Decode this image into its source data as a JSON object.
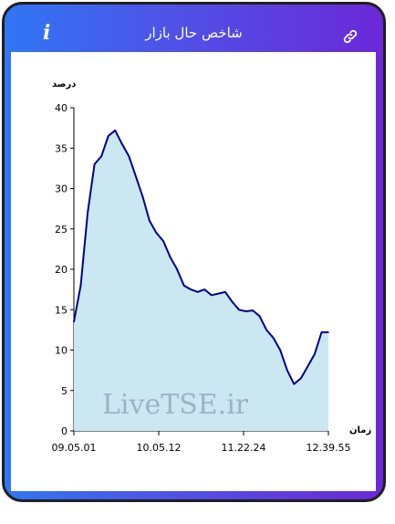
{
  "header": {
    "title": "شاخص حال بازار",
    "info_icon": "info-icon",
    "link_icon": "link-icon",
    "info_glyph": "i"
  },
  "colors": {
    "gradient_start": "#2f76f5",
    "gradient_end": "#6b28d8",
    "line": "#00008b",
    "area_fill": "#cbe7f2"
  },
  "watermark": "LiveTSE.ir",
  "chart_data": {
    "type": "area",
    "ylabel": "درصد",
    "xlabel": "زمان",
    "ylim": [
      0,
      40
    ],
    "yticks": [
      0,
      5,
      10,
      15,
      20,
      25,
      30,
      35,
      40
    ],
    "xtick_labels": [
      "09.05.01",
      "10.05.12",
      "11.22.24",
      "12.39.55"
    ],
    "x": [
      "09.05.01",
      "09.07",
      "09.10",
      "09.14",
      "09.18",
      "09.22",
      "09.26",
      "09.30",
      "09.35",
      "09.40",
      "09.45",
      "09.50",
      "09.55",
      "10.00",
      "10.05.12",
      "10.12",
      "10.20",
      "10.28",
      "10.36",
      "10.44",
      "10.52",
      "11.00",
      "11.08",
      "11.16",
      "11.22.24",
      "11.28",
      "11.34",
      "11.40",
      "11.46",
      "11.52",
      "11.58",
      "12.04",
      "12.10",
      "12.16",
      "12.22",
      "12.28",
      "12.34",
      "12.39.55"
    ],
    "series": [
      {
        "values": [
          13.5,
          18,
          27,
          33,
          34,
          36.5,
          37.2,
          35.5,
          34,
          31.5,
          29,
          26,
          24.5,
          23.5,
          21.5,
          20,
          18,
          17.5,
          17.2,
          17.5,
          16.8,
          17,
          17.2,
          16,
          15,
          14.8,
          14.9,
          14.2,
          12.5,
          11.5,
          10,
          7.5,
          5.8,
          6.5,
          8,
          9.5,
          12.2,
          12.2
        ]
      }
    ]
  }
}
